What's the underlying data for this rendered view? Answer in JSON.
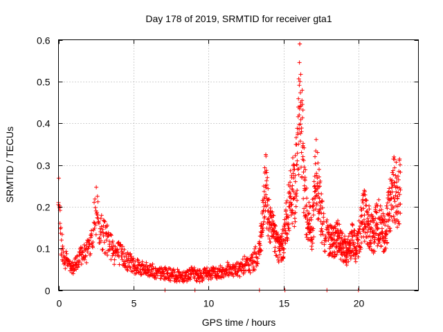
{
  "chart_data": {
    "type": "scatter",
    "title": "Day 178 of 2019, SRMTID for receiver gta1",
    "xlabel": "GPS time / hours",
    "ylabel": "SRMTID / TECUs",
    "xlim": [
      0,
      24
    ],
    "ylim": [
      0,
      0.6
    ],
    "xticks": [
      0,
      5,
      10,
      15,
      20
    ],
    "xtick_labels": [
      "0",
      "5",
      "10",
      "15",
      "20"
    ],
    "yticks": [
      0,
      0.1,
      0.2,
      0.3,
      0.4,
      0.5,
      0.6
    ],
    "ytick_labels": [
      "0",
      "0.1",
      "0.2",
      "0.3",
      "0.4",
      "0.5",
      "0.6"
    ],
    "grid": true,
    "marker": "plus",
    "color": "#ff0000",
    "series": [
      {
        "name": "SRMTID",
        "x": [
          0.0,
          0.1,
          0.2,
          0.3,
          0.4,
          0.5,
          0.6,
          0.7,
          0.8,
          0.9,
          1.0,
          1.2,
          1.4,
          1.6,
          1.8,
          2.0,
          2.2,
          2.4,
          2.5,
          2.6,
          2.7,
          2.8,
          3.0,
          3.2,
          3.4,
          3.6,
          3.8,
          4.0,
          4.2,
          4.4,
          4.6,
          4.8,
          5.0,
          5.3,
          5.6,
          5.9,
          6.2,
          6.5,
          6.8,
          7.0,
          7.3,
          7.6,
          7.9,
          8.2,
          8.5,
          8.8,
          9.0,
          9.3,
          9.5,
          9.8,
          10.0,
          10.3,
          10.6,
          10.9,
          11.2,
          11.5,
          11.8,
          12.1,
          12.4,
          12.7,
          13.0,
          13.2,
          13.4,
          13.6,
          13.7,
          13.8,
          13.9,
          14.0,
          14.1,
          14.3,
          14.5,
          14.7,
          14.9,
          15.0,
          15.2,
          15.4,
          15.5,
          15.6,
          15.7,
          15.8,
          15.9,
          16.0,
          16.05,
          16.1,
          16.15,
          16.2,
          16.3,
          16.4,
          16.5,
          16.7,
          16.9,
          17.0,
          17.1,
          17.2,
          17.4,
          17.6,
          17.8,
          18.0,
          18.2,
          18.4,
          18.6,
          18.8,
          19.0,
          19.2,
          19.4,
          19.6,
          19.8,
          20.0,
          20.2,
          20.4,
          20.6,
          20.8,
          21.0,
          21.2,
          21.4,
          21.6,
          21.8,
          22.0,
          22.2,
          22.4,
          22.6,
          22.8
        ],
        "y": [
          0.21,
          0.16,
          0.12,
          0.1,
          0.08,
          0.07,
          0.06,
          0.07,
          0.06,
          0.05,
          0.06,
          0.06,
          0.07,
          0.09,
          0.08,
          0.1,
          0.13,
          0.16,
          0.19,
          0.18,
          0.16,
          0.14,
          0.13,
          0.12,
          0.11,
          0.1,
          0.09,
          0.09,
          0.08,
          0.08,
          0.07,
          0.07,
          0.06,
          0.06,
          0.05,
          0.05,
          0.05,
          0.04,
          0.04,
          0.04,
          0.04,
          0.035,
          0.035,
          0.035,
          0.035,
          0.04,
          0.04,
          0.035,
          0.035,
          0.04,
          0.04,
          0.04,
          0.04,
          0.045,
          0.05,
          0.05,
          0.05,
          0.05,
          0.06,
          0.06,
          0.07,
          0.08,
          0.1,
          0.15,
          0.2,
          0.25,
          0.22,
          0.19,
          0.16,
          0.14,
          0.12,
          0.1,
          0.1,
          0.12,
          0.16,
          0.2,
          0.22,
          0.24,
          0.22,
          0.26,
          0.3,
          0.35,
          0.42,
          0.5,
          0.45,
          0.38,
          0.32,
          0.25,
          0.2,
          0.16,
          0.15,
          0.18,
          0.25,
          0.28,
          0.22,
          0.16,
          0.13,
          0.12,
          0.12,
          0.12,
          0.13,
          0.11,
          0.1,
          0.09,
          0.1,
          0.12,
          0.1,
          0.12,
          0.16,
          0.18,
          0.16,
          0.14,
          0.13,
          0.16,
          0.17,
          0.14,
          0.13,
          0.18,
          0.22,
          0.25,
          0.22,
          0.24
        ]
      }
    ],
    "outliers_at_zero_x": [
      7.1,
      9.1,
      13.4,
      15.1,
      17.9,
      20.0
    ]
  }
}
